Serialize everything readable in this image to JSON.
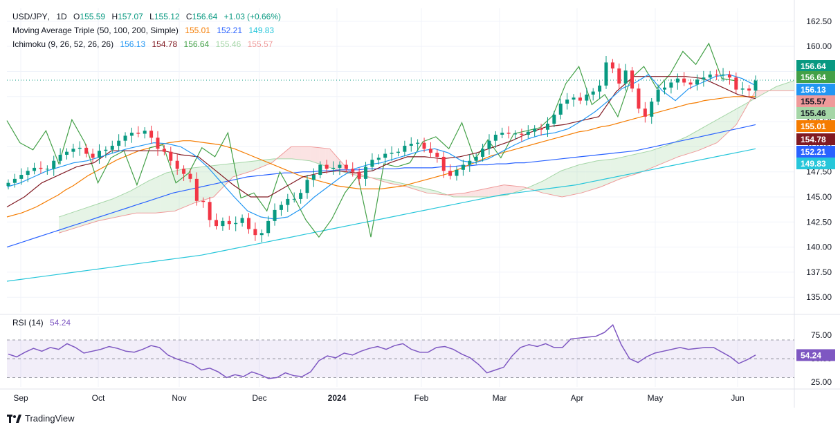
{
  "legend": {
    "symbol_line": {
      "symbol": "USD/JPY",
      "interval": "1D",
      "o_label": "O",
      "o": "155.59",
      "h_label": "H",
      "h": "157.07",
      "l_label": "L",
      "l": "155.12",
      "c_label": "C",
      "c": "156.64",
      "change": "+1.03",
      "change_pct": "(+0.66%)"
    },
    "ma_line": {
      "name": "Moving Average Triple (50, 100, 200, Simple)",
      "v1": "155.01",
      "v2": "152.21",
      "v3": "149.83"
    },
    "ichimoku_line": {
      "name": "Ichimoku (9, 26, 52, 26, 26)",
      "v1": "156.13",
      "v2": "154.78",
      "v3": "156.64",
      "v4": "155.46",
      "v5": "155.57"
    },
    "rsi": {
      "name": "RSI (14)",
      "value": "54.24"
    }
  },
  "logo": {
    "text": "TradingView"
  },
  "colors": {
    "up": "#089981",
    "down": "#f23645",
    "ma50": "#f57c00",
    "ma100": "#2962ff",
    "ma200": "#26c6da",
    "tenkan": "#2196f3",
    "kijun": "#801922",
    "chikou": "#43a047",
    "spanA": "#a5d6a7",
    "spanB": "#ef9a9a",
    "rsi": "#7e57c2"
  },
  "price_badges": [
    {
      "label": "156.64",
      "color": "#089981"
    },
    {
      "label": "156.64",
      "color": "#43a047"
    },
    {
      "label": "156.13",
      "color": "#2196f3"
    },
    {
      "label": "155.57",
      "color": "#ef9a9a"
    },
    {
      "label": "155.46",
      "color": "#a5d6a7"
    },
    {
      "label": "155.01",
      "color": "#f57c00"
    },
    {
      "label": "154.78",
      "color": "#801922"
    },
    {
      "label": "152.21",
      "color": "#2962ff"
    },
    {
      "label": "149.83",
      "color": "#26c6da"
    }
  ],
  "rsi_badge": {
    "label": "54.24",
    "color": "#7e57c2"
  },
  "chart_data": {
    "type": "line",
    "title": "USD/JPY, 1D",
    "y_ticks": [
      "162.50",
      "160.00",
      "157.50",
      "155.00",
      "152.50",
      "150.00",
      "147.50",
      "145.00",
      "142.50",
      "140.00",
      "137.50",
      "135.00"
    ],
    "ylim": [
      133.5,
      163.8
    ],
    "x_ticks": [
      "Sep",
      "Oct",
      "Nov",
      "Dec",
      "2024",
      "Feb",
      "Mar",
      "Apr",
      "May",
      "Jun"
    ],
    "rsi_ticks": [
      "75.00",
      "50.00",
      "25.00"
    ],
    "rsi_ylim": [
      20,
      95
    ],
    "series": [
      {
        "name": "Close",
        "values": [
          146.4,
          146.8,
          147.2,
          147.6,
          147.9,
          147.8,
          147.8,
          148.6,
          149.2,
          149.5,
          149.8,
          149.9,
          149.3,
          148.9,
          149.6,
          149.7,
          150.1,
          150.6,
          151.1,
          151.4,
          151.3,
          151.6,
          150.9,
          149.8,
          149.5,
          148.6,
          147.8,
          147.3,
          146.8,
          144.6,
          144.5,
          142.7,
          142.1,
          142.6,
          142.3,
          142.4,
          142.9,
          141.8,
          141.2,
          141.4,
          142.6,
          143.7,
          144.2,
          144.8,
          144.8,
          145.4,
          146.7,
          147.2,
          148.2,
          147.8,
          147.9,
          148.2,
          147.8,
          147.5,
          146.8,
          148.0,
          148.7,
          148.9,
          149.3,
          149.4,
          149.5,
          150.1,
          150.3,
          150.4,
          149.8,
          149.4,
          149.0,
          147.6,
          147.1,
          147.7,
          148.2,
          148.6,
          149.0,
          149.8,
          150.6,
          151.2,
          151.4,
          151.3,
          151.3,
          151.2,
          151.5,
          151.8,
          151.7,
          152.3,
          153.2,
          154.3,
          154.7,
          154.9,
          154.6,
          155.2,
          155.5,
          156.1,
          158.4,
          157.8,
          156.3,
          157.6,
          155.8,
          153.8,
          153.0,
          154.5,
          155.7,
          155.9,
          156.4,
          156.8,
          156.4,
          156.2,
          156.7,
          156.9,
          157.2,
          157.1,
          157.2,
          156.9,
          155.7,
          155.8,
          155.6,
          156.6
        ]
      },
      {
        "name": "MA50",
        "values": [
          143.0,
          143.2,
          143.4,
          143.7,
          144.0,
          144.4,
          144.8,
          145.2,
          145.7,
          146.1,
          146.6,
          147.1,
          147.5,
          147.9,
          148.3,
          148.7,
          149.0,
          149.3,
          149.6,
          149.8,
          150.0,
          150.2,
          150.4,
          150.5,
          150.6,
          150.6,
          150.5,
          150.4,
          150.3,
          150.2,
          150.0,
          149.8,
          149.5,
          149.2,
          148.9,
          148.6,
          148.3,
          148.0,
          147.7,
          147.4,
          147.1,
          146.9,
          146.7,
          146.5,
          146.3,
          146.1,
          146.0,
          145.9,
          145.8,
          145.8,
          145.8,
          145.8,
          145.9,
          146.0,
          146.1,
          146.3,
          146.5,
          146.7,
          146.9,
          147.1,
          147.3,
          147.6,
          147.9,
          148.2,
          148.5,
          148.8,
          149.1,
          149.3,
          149.5,
          149.7,
          149.9,
          150.1,
          150.3,
          150.5,
          150.7,
          150.9,
          151.1,
          151.3,
          151.5,
          151.6,
          151.8,
          152.0,
          152.1,
          152.3,
          152.5,
          152.7,
          152.9,
          153.1,
          153.3,
          153.5,
          153.7,
          153.9,
          154.1,
          154.3,
          154.4,
          154.6,
          154.7,
          154.8,
          154.9,
          155.0,
          155.0,
          155.0,
          155.0
        ]
      },
      {
        "name": "MA100",
        "values": [
          140.0,
          140.3,
          140.6,
          140.9,
          141.2,
          141.5,
          141.8,
          142.1,
          142.4,
          142.7,
          143.0,
          143.3,
          143.6,
          143.9,
          144.2,
          144.5,
          144.8,
          145.1,
          145.4,
          145.6,
          145.8,
          146.0,
          146.2,
          146.4,
          146.6,
          146.8,
          147.0,
          147.1,
          147.2,
          147.3,
          147.4,
          147.4,
          147.5,
          147.5,
          147.6,
          147.6,
          147.7,
          147.7,
          147.7,
          147.8,
          147.8,
          147.8,
          147.8,
          147.9,
          147.9,
          147.9,
          147.9,
          148.0,
          148.0,
          148.1,
          148.1,
          148.2,
          148.2,
          148.3,
          148.3,
          148.4,
          148.4,
          148.5,
          148.6,
          148.7,
          148.8,
          148.9,
          149.0,
          149.1,
          149.2,
          149.3,
          149.4,
          149.5,
          149.6,
          149.8,
          150.0,
          150.2,
          150.4,
          150.6,
          150.8,
          151.0,
          151.2,
          151.4,
          151.6,
          151.8,
          152.0,
          152.2
        ]
      },
      {
        "name": "MA200",
        "values": [
          136.6,
          136.8,
          137.0,
          137.2,
          137.4,
          137.6,
          137.8,
          138.0,
          138.2,
          138.4,
          138.6,
          138.8,
          139.0,
          139.2,
          139.5,
          139.8,
          140.1,
          140.4,
          140.7,
          141.0,
          141.3,
          141.6,
          141.9,
          142.2,
          142.5,
          142.8,
          143.1,
          143.4,
          143.7,
          144.0,
          144.3,
          144.6,
          144.9,
          145.2,
          145.4,
          145.6,
          145.8,
          146.0,
          146.2,
          146.5,
          146.8,
          147.1,
          147.4,
          147.7,
          148.0,
          148.3,
          148.6,
          148.9,
          149.2,
          149.5,
          149.8
        ]
      },
      {
        "name": "Tenkan",
        "values": [
          146.0,
          146.4,
          147.0,
          147.6,
          148.0,
          148.4,
          148.6,
          149.0,
          149.4,
          149.8,
          150.1,
          150.4,
          150.3,
          150.0,
          149.2,
          148.0,
          146.5,
          145.0,
          143.6,
          143.0,
          142.8,
          143.0,
          143.8,
          145.0,
          146.0,
          147.0,
          147.8,
          148.2,
          148.4,
          148.8,
          149.2,
          149.6,
          149.8,
          149.4,
          148.6,
          148.4,
          148.8,
          149.5,
          150.2,
          150.8,
          151.2,
          151.4,
          151.8,
          152.6,
          153.5,
          154.6,
          155.8,
          156.4,
          157.2,
          155.6,
          154.6,
          155.8,
          156.4,
          157.0,
          157.2,
          156.8,
          156.1
        ]
      },
      {
        "name": "Kijun",
        "values": [
          144.0,
          145.0,
          146.4,
          147.2,
          148.0,
          148.4,
          149.6,
          149.6,
          149.6,
          149.6,
          149.2,
          149.0,
          147.6,
          146.2,
          145.0,
          145.0,
          146.0,
          147.0,
          147.4,
          147.6,
          147.4,
          147.6,
          148.4,
          149.0,
          149.0,
          148.8,
          149.0,
          149.4,
          150.0,
          150.6,
          151.4,
          152.0,
          152.2,
          152.6,
          153.0,
          155.5,
          157.0,
          157.0,
          157.0,
          157.0,
          156.8,
          156.0,
          155.2,
          154.8
        ]
      },
      {
        "name": "Chikou",
        "values": [
          152.6,
          150.4,
          149.7,
          151.6,
          148.3,
          152.7,
          150.4,
          146.4,
          148.9,
          149.6,
          146.2,
          149.9,
          150.2,
          146.4,
          147.4,
          149.9,
          149.0,
          151.4,
          144.9,
          145.4,
          143.6,
          147.5,
          145.2,
          142.7,
          141.0,
          142.8,
          145.4,
          147.1,
          141.0,
          148.3,
          148.0,
          148.4,
          150.5,
          151.0,
          149.8,
          152.4,
          148.7,
          150.7,
          148.9,
          151.3,
          151.6,
          151.9,
          153.1,
          156.3,
          158.0,
          154.2,
          155.2,
          153.0,
          156.8,
          158.0,
          155.8,
          157.2,
          159.5,
          158.2,
          160.3,
          156.8,
          156.6
        ]
      },
      {
        "name": "SpanA",
        "values": [
          143.0,
          143.6,
          144.2,
          144.8,
          145.6,
          146.6,
          147.4,
          147.8,
          148.0,
          148.2,
          148.4,
          148.6,
          148.8,
          148.8,
          148.6,
          148.0,
          147.4,
          147.0,
          146.8,
          146.4,
          146.0,
          145.6,
          145.0,
          145.0,
          145.0,
          145.2,
          145.8,
          146.6,
          147.6,
          148.2,
          148.6,
          148.8,
          149.2,
          149.6,
          150.2,
          151.0,
          152.0,
          153.0,
          154.0,
          155.0,
          156.0,
          156.6
        ]
      },
      {
        "name": "SpanB",
        "values": [
          141.4,
          142.0,
          142.6,
          143.0,
          143.4,
          143.4,
          143.6,
          144.4,
          145.0,
          147.0,
          147.6,
          148.4,
          150.0,
          150.0,
          149.8,
          147.6,
          147.0,
          146.4,
          146.0,
          145.4,
          145.2,
          145.4,
          145.8,
          146.2,
          146.0,
          145.4,
          145.0,
          145.4,
          146.0,
          146.8,
          147.4,
          148.2,
          149.0,
          149.6,
          150.4,
          152.2,
          155.6,
          155.6,
          155.6
        ]
      },
      {
        "name": "RSI",
        "values": [
          55,
          52,
          57,
          61,
          58,
          62,
          60,
          66,
          62,
          56,
          58,
          60,
          63,
          61,
          58,
          57,
          60,
          64,
          62,
          54,
          50,
          47,
          44,
          38,
          40,
          36,
          30,
          33,
          31,
          36,
          33,
          29,
          30,
          35,
          32,
          31,
          36,
          48,
          53,
          51,
          56,
          54,
          58,
          61,
          63,
          60,
          64,
          66,
          60,
          57,
          57,
          62,
          63,
          60,
          55,
          51,
          44,
          35,
          38,
          41,
          53,
          62,
          65,
          63,
          66,
          62,
          62,
          71,
          72,
          73,
          74,
          78,
          86,
          65,
          50,
          46,
          52,
          56,
          58,
          60,
          62,
          60,
          61,
          62,
          62,
          57,
          52,
          45,
          49,
          54
        ]
      }
    ]
  }
}
